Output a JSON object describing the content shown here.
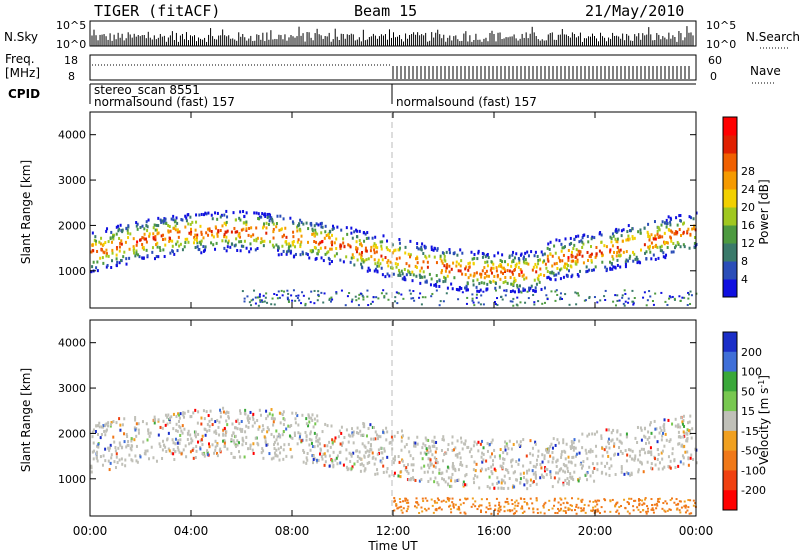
{
  "header": {
    "radar": "TIGER (fitACF)",
    "beam": "Beam 15",
    "date": "21/May/2010"
  },
  "nsky": {
    "label": "N.Sky",
    "tick_top": "10^5",
    "tick_bottom": "10^0",
    "right_label": "N.Search",
    "right_tick_top": "10^5",
    "right_tick_bottom": "10^0"
  },
  "freq": {
    "label_line1": "Freq.",
    "label_line2": "[MHz]",
    "tick_top": "18",
    "tick_bottom": "8",
    "right_label": "Nave",
    "right_tick_top": "60",
    "right_tick_bottom": "0"
  },
  "cpid": {
    "label": "CPID",
    "segments": [
      {
        "line1": "stereo_scan 8551",
        "line2": "normalsound (fast) 157"
      },
      {
        "line1": "",
        "line2": "normalsound (fast) 157"
      }
    ]
  },
  "chart_data": [
    {
      "type": "heatmap",
      "name": "Power",
      "xlabel": "",
      "ylabel": "Slant Range [km]",
      "x_range_hours": [
        0,
        24
      ],
      "ylim": [
        180,
        4500
      ],
      "yticks": [
        "1000",
        "2000",
        "3000",
        "4000"
      ],
      "colorbar": {
        "label": "Power [dB]",
        "ticks": [
          "4",
          "8",
          "12",
          "16",
          "20",
          "24",
          "28"
        ],
        "colors": [
          "#1010e0",
          "#2a4db8",
          "#3a7a6a",
          "#4d9a40",
          "#a0c820",
          "#f2d000",
          "#f59a00",
          "#f06000",
          "#e02000",
          "#ff0000"
        ]
      },
      "features": [
        {
          "band": "main F-region echo",
          "time_range": [
            "00:00",
            "24:00"
          ],
          "range_km": [
            1100,
            2300
          ],
          "peak_db": 28
        },
        {
          "band": "ground/near range",
          "time_range": [
            "06:00",
            "24:00"
          ],
          "range_km": [
            200,
            600
          ],
          "peak_db": 12
        }
      ]
    },
    {
      "type": "heatmap",
      "name": "Velocity",
      "xlabel": "Time UT",
      "ylabel": "Slant Range [km]",
      "x_range_hours": [
        0,
        24
      ],
      "ylim": [
        180,
        4500
      ],
      "yticks": [
        "1000",
        "2000",
        "3000",
        "4000"
      ],
      "xticks": [
        "00:00",
        "04:00",
        "08:00",
        "12:00",
        "16:00",
        "20:00",
        "00:00"
      ],
      "colorbar": {
        "label": "Velocity [m s-1]",
        "ticks": [
          "200",
          "100",
          "50",
          "15",
          "-15",
          "-50",
          "-100",
          "-200"
        ],
        "colors": [
          "#1a2ec8",
          "#3f6fd8",
          "#3aa83a",
          "#78c850",
          "#c0c0b8",
          "#f0a020",
          "#f07818",
          "#f04010",
          "#ff0000"
        ]
      },
      "features": [
        {
          "band": "ground scatter (grey)",
          "time_range": [
            "00:00",
            "24:00"
          ],
          "range_km": [
            1100,
            2400
          ],
          "velocity": "-15 to 15"
        },
        {
          "band": "near range",
          "time_range": [
            "12:00",
            "24:00"
          ],
          "range_km": [
            200,
            600
          ],
          "velocity": "-50 to -100"
        }
      ]
    }
  ],
  "xaxis": {
    "label": "Time UT",
    "ticks": [
      "00:00",
      "04:00",
      "08:00",
      "12:00",
      "16:00",
      "20:00",
      "00:00"
    ]
  }
}
